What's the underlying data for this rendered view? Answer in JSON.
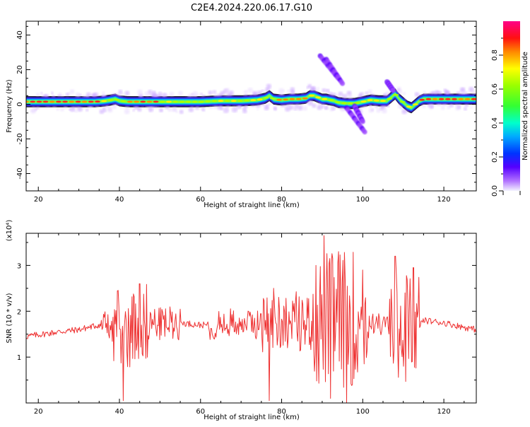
{
  "title": "C2E4.2024.220.06.17.G10",
  "chart_data": [
    {
      "type": "heatmap",
      "xlabel": "Height of straight line (km)",
      "ylabel": "Frequency (Hz)",
      "xlim": [
        17,
        128
      ],
      "ylim": [
        -50,
        48
      ],
      "xticks": [
        20,
        40,
        60,
        80,
        100,
        120
      ],
      "yticks": [
        -40,
        -20,
        0,
        20,
        40
      ],
      "colorbar": {
        "label": "Normalized spectral amplitude",
        "range": [
          0,
          1
        ],
        "ticks": [
          "0.0",
          "0.2",
          "0.4",
          "0.6",
          "0.8"
        ],
        "tick_values": [
          0,
          0.2,
          0.4,
          0.6,
          0.8
        ]
      },
      "ridge": {
        "x": [
          18,
          30,
          34,
          36,
          38,
          39,
          40,
          42,
          45,
          50,
          55,
          60,
          65,
          70,
          74,
          76,
          77,
          78,
          80,
          82,
          84,
          86,
          87,
          88,
          89,
          90,
          91,
          92,
          93,
          94,
          96,
          98,
          100,
          102,
          104,
          106,
          107,
          108,
          109,
          110,
          111,
          112,
          113,
          114,
          115,
          118,
          122,
          128
        ],
        "freq": [
          1.5,
          1.5,
          1.5,
          1.8,
          2.5,
          3,
          2,
          1.5,
          1.5,
          1.5,
          1.5,
          1.5,
          2,
          2,
          2.5,
          3.5,
          5,
          3,
          2.5,
          3,
          3,
          3.5,
          5,
          5,
          4,
          3,
          3,
          2.5,
          2,
          1,
          0.5,
          0.5,
          1.5,
          2.5,
          2,
          2,
          4,
          6,
          3,
          1,
          -1,
          -2,
          0,
          2,
          3,
          3,
          3,
          3
        ]
      },
      "plume_segments": [
        {
          "x": [
            89.5,
            94.0
          ],
          "freq": [
            28,
            15
          ]
        },
        {
          "x": [
            91.0,
            95.0
          ],
          "freq": [
            26,
            12
          ]
        },
        {
          "x": [
            96.0,
            100.5
          ],
          "freq": [
            -2,
            -16
          ]
        },
        {
          "x": [
            98.0,
            100.0
          ],
          "freq": [
            -1,
            -10
          ]
        },
        {
          "x": [
            106.0,
            107.5
          ],
          "freq": [
            13,
            8
          ]
        }
      ]
    },
    {
      "type": "line",
      "xlabel": "Height of straight line (km)",
      "ylabel": "SNR (10 * v/v)",
      "y_multiplier": "(x10⁴)",
      "xlim": [
        17,
        128
      ],
      "ylim": [
        0,
        3.7
      ],
      "xticks": [
        20,
        40,
        60,
        80,
        100,
        120
      ],
      "yticks": [
        1,
        2,
        3
      ],
      "color": "#ee3333",
      "baseline": {
        "x": [
          17,
          25,
          30,
          35,
          40,
          45,
          50,
          55,
          60,
          65,
          70,
          75,
          80,
          85,
          90,
          95,
          100,
          105,
          110,
          114,
          115,
          120,
          125,
          128
        ],
        "y": [
          1.45,
          1.55,
          1.6,
          1.7,
          1.6,
          1.7,
          1.75,
          1.75,
          1.7,
          1.7,
          1.75,
          1.75,
          1.8,
          1.75,
          1.8,
          1.8,
          1.8,
          1.7,
          1.7,
          1.7,
          1.8,
          1.75,
          1.65,
          1.6
        ]
      },
      "bursts": [
        {
          "x0": 35.5,
          "x1": 38.5,
          "amp": 0.35
        },
        {
          "x0": 38.5,
          "x1": 47.0,
          "amp": 0.85
        },
        {
          "x0": 47.0,
          "x1": 55.0,
          "amp": 0.35
        },
        {
          "x0": 62.0,
          "x1": 75.0,
          "amp": 0.3
        },
        {
          "x0": 75.0,
          "x1": 88.0,
          "amp": 0.65
        },
        {
          "x0": 88.0,
          "x1": 99.0,
          "amp": 1.5
        },
        {
          "x0": 99.0,
          "x1": 101.5,
          "amp": 1.1
        },
        {
          "x0": 101.5,
          "x1": 106.5,
          "amp": 0.2
        },
        {
          "x0": 106.5,
          "x1": 114.0,
          "amp": 1.2
        }
      ],
      "peaks": [
        {
          "x": 41.0,
          "y": 0.05
        },
        {
          "x": 45.0,
          "y": 2.6
        },
        {
          "x": 77.0,
          "y": 0.05
        },
        {
          "x": 78.0,
          "y": 2.5
        },
        {
          "x": 88.5,
          "y": 3.0
        },
        {
          "x": 90.5,
          "y": 3.65
        },
        {
          "x": 92.0,
          "y": 0.1
        },
        {
          "x": 94.0,
          "y": 3.3
        },
        {
          "x": 96.0,
          "y": 0.0
        },
        {
          "x": 100.0,
          "y": 2.9
        },
        {
          "x": 108.0,
          "y": 3.2
        },
        {
          "x": 112.5,
          "y": 2.95
        }
      ]
    }
  ]
}
